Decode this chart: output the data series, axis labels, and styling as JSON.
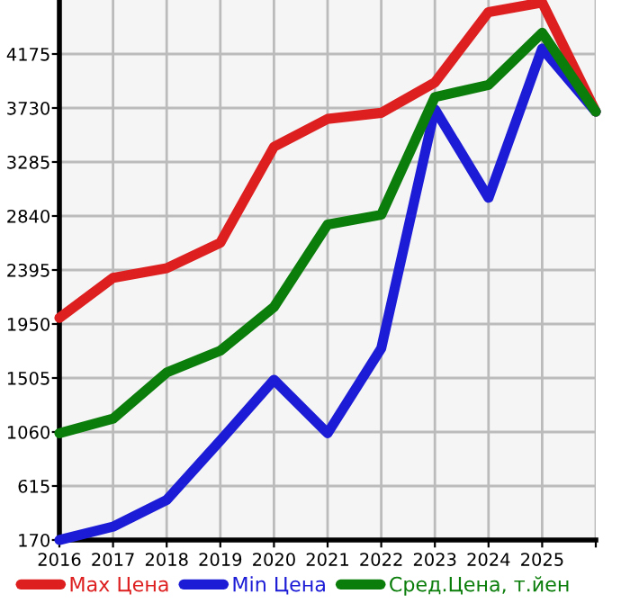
{
  "chart_data": {
    "type": "line",
    "categories": [
      "2016",
      "2017",
      "2018",
      "2019",
      "2020",
      "2021",
      "2022",
      "2023",
      "2024",
      "2025",
      null
    ],
    "series": [
      {
        "name": "Max Цена",
        "color": "#dd1f1f",
        "values": [
          2000,
          2330,
          2410,
          2620,
          3410,
          3640,
          3690,
          3940,
          4520,
          4600,
          3700
        ]
      },
      {
        "name": "Min Цена",
        "color": "#1c1cd6",
        "values": [
          170,
          280,
          500,
          990,
          1490,
          1050,
          1750,
          3720,
          2990,
          4220,
          3700
        ]
      },
      {
        "name": "Сред.Цена, т.йен",
        "color": "#0a7d0a",
        "values": [
          1050,
          1170,
          1550,
          1730,
          2090,
          2770,
          2850,
          3820,
          3920,
          4350,
          3700
        ]
      }
    ],
    "ylim": [
      170,
      4620
    ],
    "yticks": [
      170,
      615,
      1060,
      1505,
      1950,
      2395,
      2840,
      3285,
      3730,
      4175
    ],
    "grid": true,
    "legend": "bottom",
    "marker": "none",
    "line_style": "solid"
  }
}
